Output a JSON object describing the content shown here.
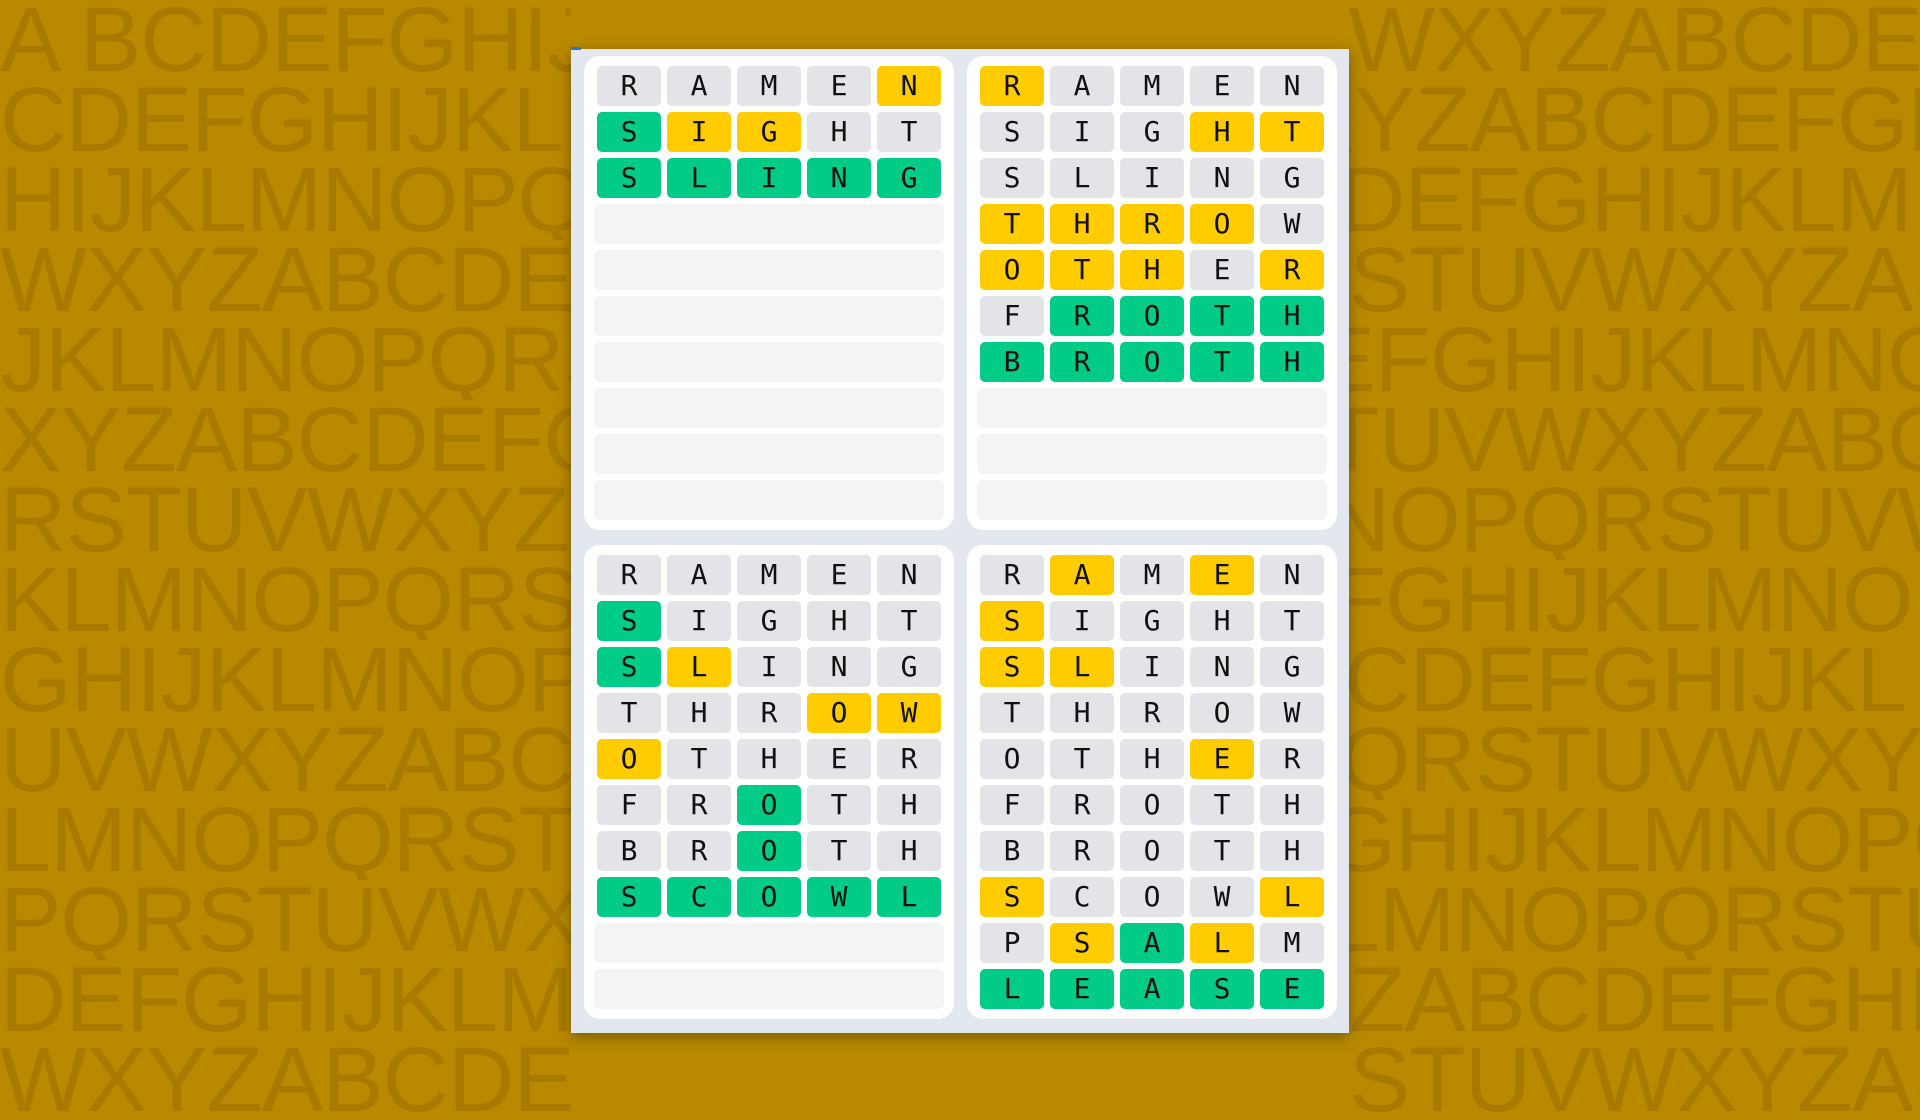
{
  "background_letters": [
    "A BCDEFGHIJKLMNOPQRSTUVWXYZABCDEF",
    "CDEFGHIJKLMNOPQRSTUVWXYZABCDEFGH",
    "HIJKLMNOPQRSTUVWXYZABCDEFGHIJKLM",
    "WXYZABCDEFGHIJKLMNOPQRSTUVWXYZAB",
    "JKLMNOPQRSTUVWXYZABCDEFGHIJKLMNO",
    "XYZABCDEFGHIJKLMNOPQRSTUVWXYZABC",
    "RSTUVWXYZABCDEFGHIJKLMNOPQRSTUVW",
    "KLMNOPQRSTUVWXYZABCDEFGHIJKLMNOP",
    "GHIJKLMNOPQRSTUVWXYZABCDEFGHIJKL",
    "UVWXYZABCDEFGHIJKLMNOPQRSTUVWXYZ",
    "LMNOPQRSTUVWXYZABCDEFGHIJKLMNOPQ",
    "PQRSTUVWXYZABCDEFGHIJKLMNOPQRSTU",
    "DEFGHIJKLMNOPQRSTUVWXYZABCDEFGHI",
    "WXYZABCDEFGHIJKLMNOPQRSTUVWXYZAB"
  ],
  "colors": {
    "correct": "#00cc88",
    "present": "#ffcc00",
    "absent": "#e3e4e8",
    "empty": "#f3f4f6",
    "background": "#b98a00"
  },
  "total_rows": 10,
  "boards": [
    {
      "guesses": [
        {
          "word": "RAMEN",
          "states": "....y"
        },
        {
          "word": "SIGHT",
          "states": "gyy.."
        },
        {
          "word": "SLING",
          "states": "ggggg"
        }
      ]
    },
    {
      "guesses": [
        {
          "word": "RAMEN",
          "states": "y...."
        },
        {
          "word": "SIGHT",
          "states": "...yy"
        },
        {
          "word": "SLING",
          "states": "....."
        },
        {
          "word": "THROW",
          "states": "yyyy."
        },
        {
          "word": "OTHER",
          "states": "yyy.y"
        },
        {
          "word": "FROTH",
          "states": ".gggg"
        },
        {
          "word": "BROTH",
          "states": "ggggg"
        }
      ]
    },
    {
      "guesses": [
        {
          "word": "RAMEN",
          "states": "....."
        },
        {
          "word": "SIGHT",
          "states": "g...."
        },
        {
          "word": "SLING",
          "states": "gy..."
        },
        {
          "word": "THROW",
          "states": "...yy"
        },
        {
          "word": "OTHER",
          "states": "y...."
        },
        {
          "word": "FROTH",
          "states": "..g.."
        },
        {
          "word": "BROTH",
          "states": "..g.."
        },
        {
          "word": "SCOWL",
          "states": "ggggg"
        }
      ]
    },
    {
      "guesses": [
        {
          "word": "RAMEN",
          "states": ".y.y."
        },
        {
          "word": "SIGHT",
          "states": "y...."
        },
        {
          "word": "SLING",
          "states": "yy..."
        },
        {
          "word": "THROW",
          "states": "....."
        },
        {
          "word": "OTHER",
          "states": "...y."
        },
        {
          "word": "FROTH",
          "states": "....."
        },
        {
          "word": "BROTH",
          "states": "....."
        },
        {
          "word": "SCOWL",
          "states": "y...y"
        },
        {
          "word": "PSALM",
          "states": ".ygy."
        },
        {
          "word": "LEASE",
          "states": "ggggg"
        }
      ]
    }
  ]
}
